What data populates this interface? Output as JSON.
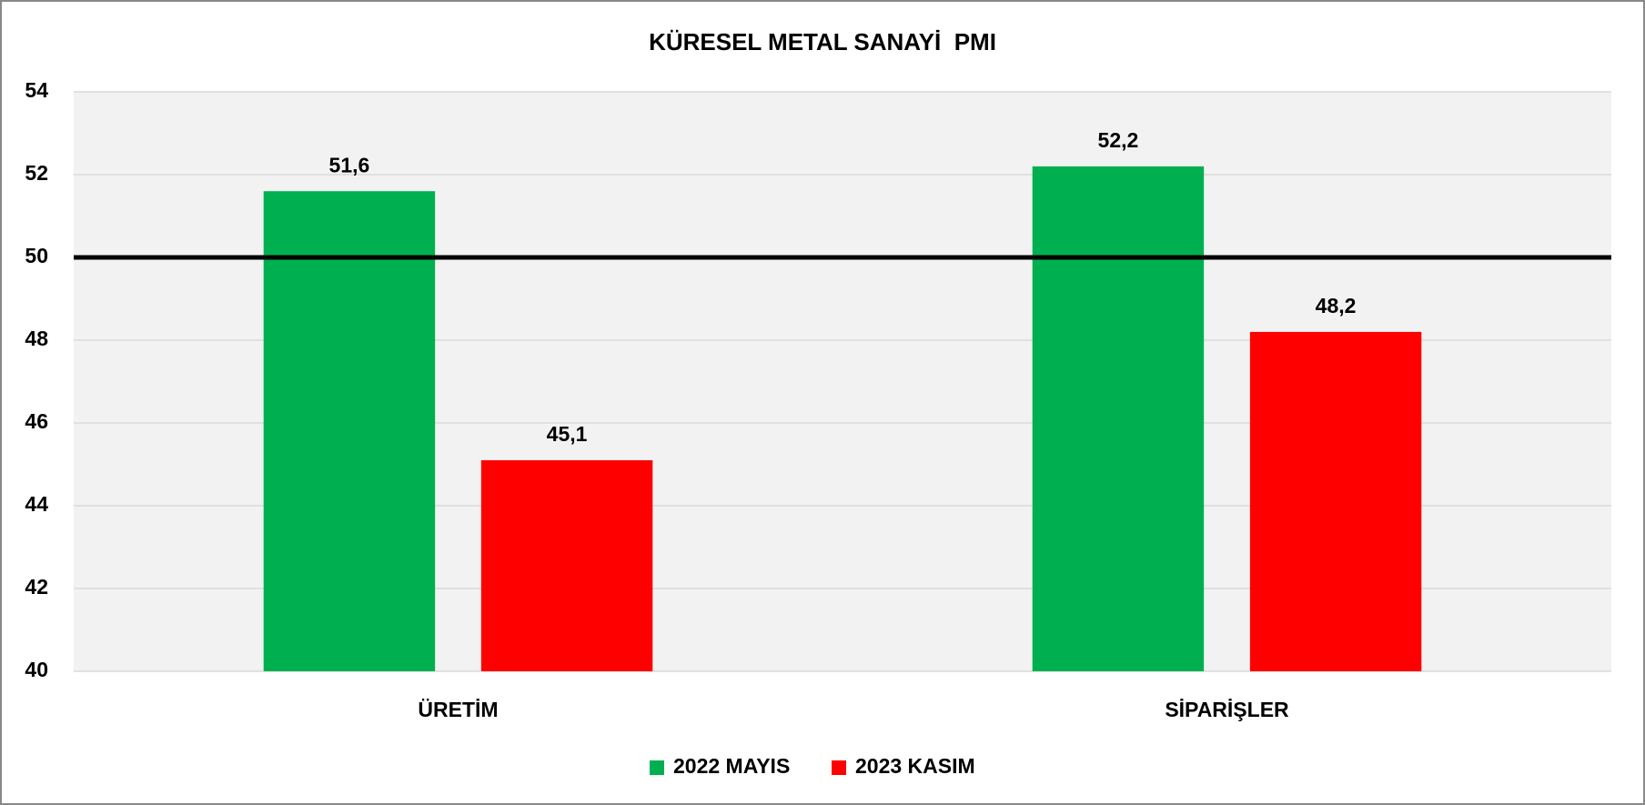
{
  "chart_data": {
    "type": "bar",
    "title": "KÜRESEL METAL SANAYİ  PMI",
    "categories": [
      "ÜRETİM",
      "SİPARİŞLER"
    ],
    "series": [
      {
        "name": "2022 MAYIS",
        "color": "#00b050",
        "values": [
          51.6,
          52.2
        ],
        "value_labels": [
          "51,6",
          "52,2"
        ]
      },
      {
        "name": "2023 KASIM",
        "color": "#ff0000",
        "values": [
          45.1,
          48.2
        ],
        "value_labels": [
          "45,1",
          "48,2"
        ]
      }
    ],
    "ylim": [
      40,
      54
    ],
    "yticks": [
      40,
      42,
      44,
      46,
      48,
      50,
      52,
      54
    ],
    "grid": true,
    "reference_line": 50,
    "legend": "bottom"
  }
}
